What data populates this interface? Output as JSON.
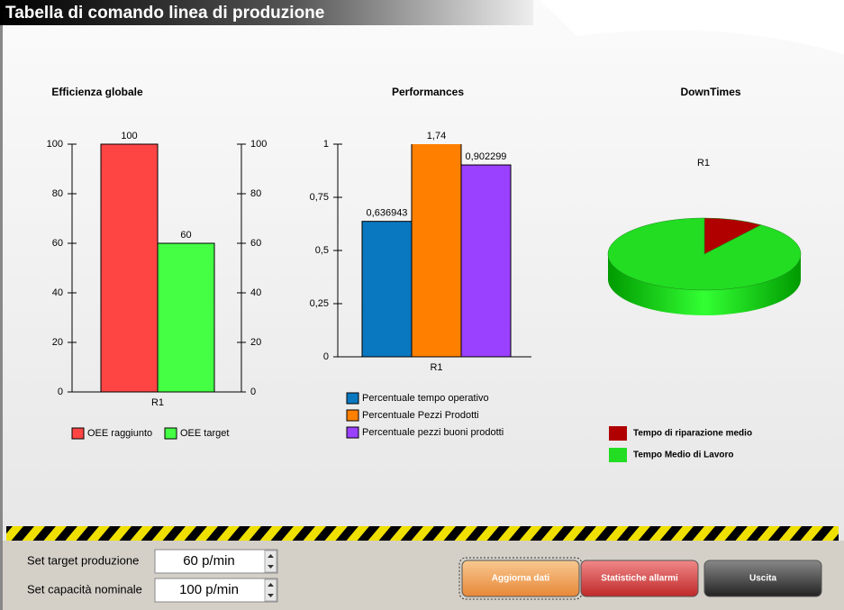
{
  "header": {
    "title": "Tabella di comando linea di produzione"
  },
  "chart_data": [
    {
      "type": "bar",
      "title": "Efficienza globale",
      "categories": [
        "R1"
      ],
      "series": [
        {
          "name": "OEE raggiunto",
          "color": "#ff4444",
          "values": [
            100
          ]
        },
        {
          "name": "OEE target",
          "color": "#44ff44",
          "values": [
            60
          ]
        }
      ],
      "ylim": [
        0,
        100
      ],
      "yticks": [
        0,
        20,
        40,
        60,
        80,
        100
      ],
      "y2lim": [
        0,
        100
      ],
      "y2ticks": [
        0,
        20,
        40,
        60,
        80,
        100
      ],
      "legend": "bottom"
    },
    {
      "type": "bar",
      "title": "Performances",
      "categories": [
        "R1"
      ],
      "series": [
        {
          "name": "Percentuale tempo operativo",
          "color": "#0a78c0",
          "values": [
            0.636943
          ],
          "value_labels": [
            "0,636943"
          ]
        },
        {
          "name": "Percentuale Pezzi Prodotti",
          "color": "#ff8000",
          "values": [
            1.74
          ],
          "value_labels": [
            "1,74"
          ]
        },
        {
          "name": "Percentuale pezzi buoni prodotti",
          "color": "#9a40ff",
          "values": [
            0.902299
          ],
          "value_labels": [
            "0,902299"
          ]
        }
      ],
      "ylim": [
        0,
        1
      ],
      "yticks": [
        0,
        {
          "value": 0.25,
          "label": "0,25"
        },
        {
          "value": 0.5,
          "label": "0,5"
        },
        {
          "value": 0.75,
          "label": "0,75"
        },
        1
      ],
      "legend": "bottom"
    },
    {
      "type": "pie",
      "title": "DownTimes",
      "label": "R1",
      "categories": [
        "Tempo di riparazione medio",
        "Tempo Medio di Lavoro"
      ],
      "values": [
        10,
        90
      ],
      "colors": [
        "#b00000",
        "#22dd22"
      ],
      "legend": "bottom"
    }
  ],
  "controls": [
    {
      "label": "Set target produzione",
      "value": "60 p/min"
    },
    {
      "label": "Set capacità nominale",
      "value": "100 p/min"
    }
  ],
  "buttons": [
    "Aggiorna dati",
    "Statistiche allarmi",
    "Uscita"
  ]
}
